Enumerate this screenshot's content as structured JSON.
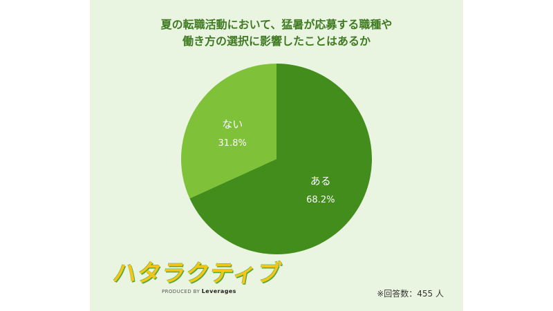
{
  "chart_data": {
    "type": "pie",
    "title_lines": [
      "夏の転職活動において、猛暑が応募する職種や",
      "働き方の選択に影響したことはあるか"
    ],
    "slices": [
      {
        "label": "ある",
        "value": 68.2,
        "display": "68.2%",
        "color": "#428d1b"
      },
      {
        "label": "ない",
        "value": 31.8,
        "display": "31.8%",
        "color": "#7fc23a"
      }
    ],
    "start_angle_deg": 0,
    "direction": "clockwise",
    "note": "※回答数：455 人"
  },
  "logo": {
    "main": "ハタラクティブ",
    "sub_prefix": "PRODUCED BY",
    "sub_brand": "Leverages"
  },
  "colors": {
    "background": "#eaf5e1",
    "title": "#3f7a22",
    "slice_label": "#ffffff"
  }
}
